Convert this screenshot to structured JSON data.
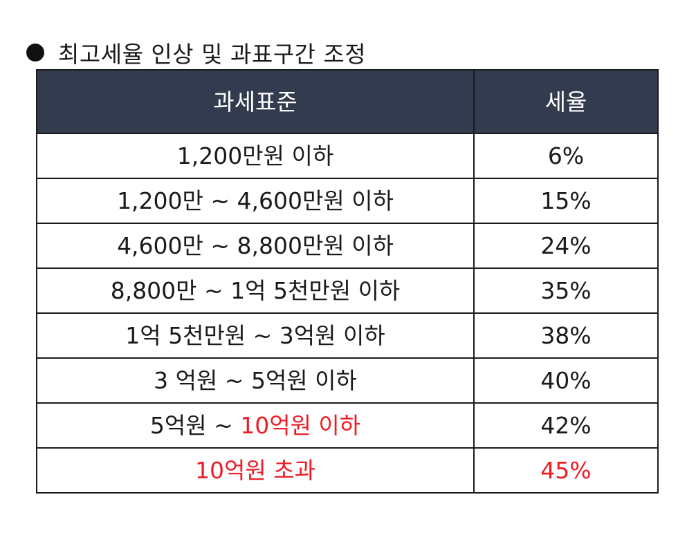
{
  "heading": {
    "bullet_icon": "filled-circle-bullet",
    "title": "최고세율 인상 및 과표구간 조정"
  },
  "table": {
    "header_bg": "#323c4e",
    "highlight_color": "#ee1c24",
    "columns": [
      "과세표준",
      "세율"
    ],
    "rows": [
      {
        "bracket": "1,200만원 이하",
        "rate": "6%"
      },
      {
        "bracket": "1,200만 ~ 4,600만원 이하",
        "rate": "15%"
      },
      {
        "bracket": "4,600만 ~ 8,800만원 이하",
        "rate": "24%"
      },
      {
        "bracket": "8,800만 ~ 1억 5천만원 이하",
        "rate": "35%"
      },
      {
        "bracket": "1억 5천만원 ~ 3억원 이하",
        "rate": "38%"
      },
      {
        "bracket": "3 억원 ~ 5억원 이하",
        "rate": "40%"
      },
      {
        "bracket_prefix": "5억원 ~ ",
        "bracket_highlight": "10억원 이하",
        "rate": "42%"
      },
      {
        "bracket": "10억원 초과",
        "rate": "45%",
        "highlighted": true
      }
    ]
  }
}
